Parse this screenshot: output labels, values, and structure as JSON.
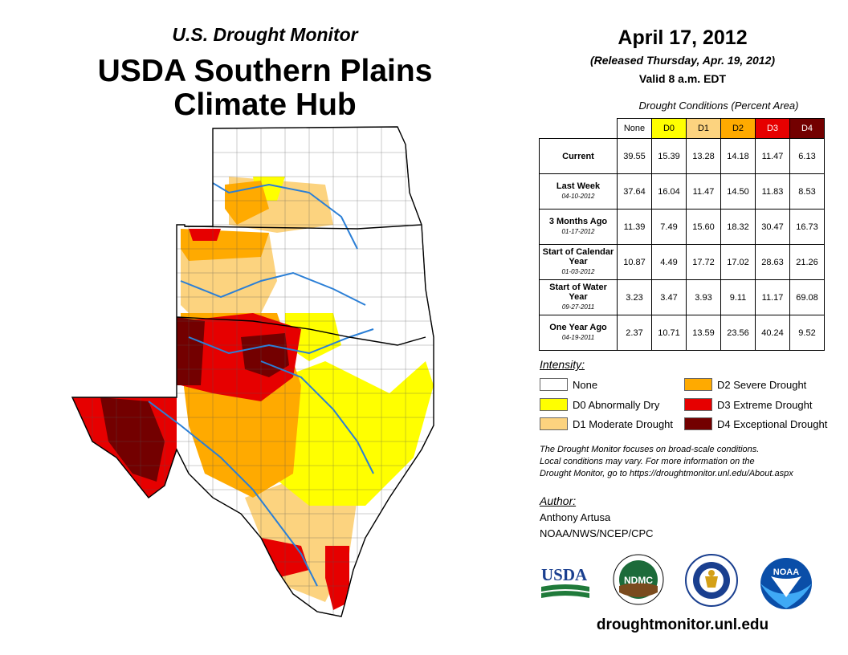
{
  "header": {
    "subtitle": "U.S. Drought Monitor",
    "title_line1": "USDA Southern Plains",
    "title_line2": "Climate Hub"
  },
  "date_block": {
    "date": "April 17, 2012",
    "released": "(Released Thursday, Apr. 19, 2012)",
    "valid": "Valid 8 a.m. EDT"
  },
  "table": {
    "caption": "Drought Conditions (Percent Area)",
    "columns": [
      "None",
      "D0",
      "D1",
      "D2",
      "D3",
      "D4"
    ],
    "rows": [
      {
        "label": "Current",
        "sub": "",
        "values": [
          "39.55",
          "15.39",
          "13.28",
          "14.18",
          "11.47",
          "6.13"
        ]
      },
      {
        "label": "Last Week",
        "sub": "04-10-2012",
        "values": [
          "37.64",
          "16.04",
          "11.47",
          "14.50",
          "11.83",
          "8.53"
        ]
      },
      {
        "label": "3 Months Ago",
        "sub": "01-17-2012",
        "values": [
          "11.39",
          "7.49",
          "15.60",
          "18.32",
          "30.47",
          "16.73"
        ]
      },
      {
        "label": "Start of Calendar Year",
        "sub": "01-03-2012",
        "values": [
          "10.87",
          "4.49",
          "17.72",
          "17.02",
          "28.63",
          "21.26"
        ]
      },
      {
        "label": "Start of Water Year",
        "sub": "09-27-2011",
        "values": [
          "3.23",
          "3.47",
          "3.93",
          "9.11",
          "11.17",
          "69.08"
        ]
      },
      {
        "label": "One Year Ago",
        "sub": "04-19-2011",
        "values": [
          "2.37",
          "10.71",
          "13.59",
          "23.56",
          "40.24",
          "9.52"
        ]
      }
    ]
  },
  "legend": {
    "title": "Intensity:",
    "items": [
      {
        "label": "None",
        "color": "#ffffff"
      },
      {
        "label": "D0 Abnormally Dry",
        "color": "#ffff00"
      },
      {
        "label": "D1 Moderate Drought",
        "color": "#fcd37f"
      },
      {
        "label": "D2 Severe Drought",
        "color": "#ffaa00"
      },
      {
        "label": "D3 Extreme Drought",
        "color": "#e60000"
      },
      {
        "label": "D4 Exceptional Drought",
        "color": "#730000"
      }
    ]
  },
  "note": {
    "line1": "The Drought Monitor focuses on broad-scale conditions.",
    "line2": "Local conditions may vary. For more information on the",
    "line3": "Drought Monitor, go to https://droughtmonitor.unl.edu/About.aspx"
  },
  "author": {
    "title": "Author:",
    "name": "Anthony Artusa",
    "org": "NOAA/NWS/NCEP/CPC"
  },
  "logos": {
    "usda": "USDA",
    "ndmc": "NDMC",
    "noaa": "NOAA"
  },
  "website": "droughtmonitor.unl.edu"
}
